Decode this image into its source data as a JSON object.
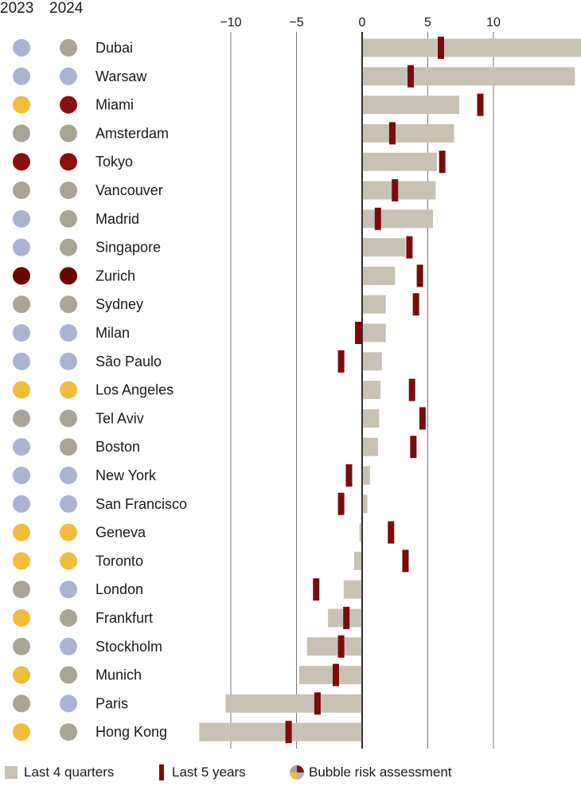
{
  "headers": {
    "col2023": "2023",
    "col2024": "2024"
  },
  "colors": {
    "bar": "#c8c2b4",
    "marker": "#7a0c0c",
    "axis": "#1a1a1a",
    "grid": "#555555",
    "risk": {
      "depressed": "#aab4d2",
      "fair": "#a8a596",
      "overvalued": "#f2bd3a",
      "bubble": "#8a1010",
      "high_bubble": "#6a0606"
    }
  },
  "legend": {
    "bars": "Last 4 quarters",
    "markers": "Last 5 years",
    "pie": "Bubble risk assessment"
  },
  "chart_data": {
    "type": "bar",
    "orientation": "horizontal",
    "xlim": [
      -12.4,
      16.5
    ],
    "xticks": [
      -10,
      -5,
      0,
      5,
      10
    ],
    "xtick_labels": [
      "−10",
      "−5",
      "0",
      "5",
      "10"
    ],
    "grid": true,
    "legend_position": "bottom",
    "categories": [
      "Dubai",
      "Warsaw",
      "Miami",
      "Amsterdam",
      "Tokyo",
      "Vancouver",
      "Madrid",
      "Singapore",
      "Zurich",
      "Sydney",
      "Milan",
      "São Paulo",
      "Los Angeles",
      "Tel Aviv",
      "Boston",
      "New York",
      "San Francisco",
      "Geneva",
      "Toronto",
      "London",
      "Frankfurt",
      "Stockholm",
      "Munich",
      "Paris",
      "Hong Kong"
    ],
    "series": [
      {
        "name": "Last 4 quarters",
        "values": [
          16.8,
          16.2,
          7.4,
          7.0,
          5.7,
          5.6,
          5.4,
          3.3,
          2.5,
          1.8,
          1.8,
          1.5,
          1.4,
          1.3,
          1.2,
          0.6,
          0.4,
          -0.2,
          -0.6,
          -1.4,
          -2.6,
          -4.2,
          -4.8,
          -10.4,
          -12.4
        ]
      },
      {
        "name": "Last 5 years",
        "values": [
          6.0,
          3.7,
          9.0,
          2.3,
          6.1,
          2.5,
          1.2,
          3.6,
          4.4,
          4.1,
          -0.3,
          -1.6,
          3.8,
          4.6,
          3.9,
          -1.0,
          -1.6,
          2.2,
          3.3,
          -3.5,
          -1.2,
          -1.6,
          -2.0,
          -3.4,
          -5.6
        ]
      }
    ],
    "risk_2023": [
      "depressed",
      "depressed",
      "overvalued",
      "fair",
      "bubble",
      "fair",
      "depressed",
      "depressed",
      "high_bubble",
      "fair",
      "depressed",
      "depressed",
      "overvalued",
      "fair",
      "depressed",
      "depressed",
      "depressed",
      "overvalued",
      "overvalued",
      "fair",
      "overvalued",
      "fair",
      "overvalued",
      "fair",
      "overvalued"
    ],
    "risk_2024": [
      "fair",
      "depressed",
      "bubble",
      "fair",
      "bubble",
      "fair",
      "fair",
      "fair",
      "high_bubble",
      "fair",
      "depressed",
      "depressed",
      "overvalued",
      "fair",
      "fair",
      "depressed",
      "depressed",
      "overvalued",
      "overvalued",
      "depressed",
      "fair",
      "depressed",
      "fair",
      "depressed",
      "fair"
    ]
  }
}
